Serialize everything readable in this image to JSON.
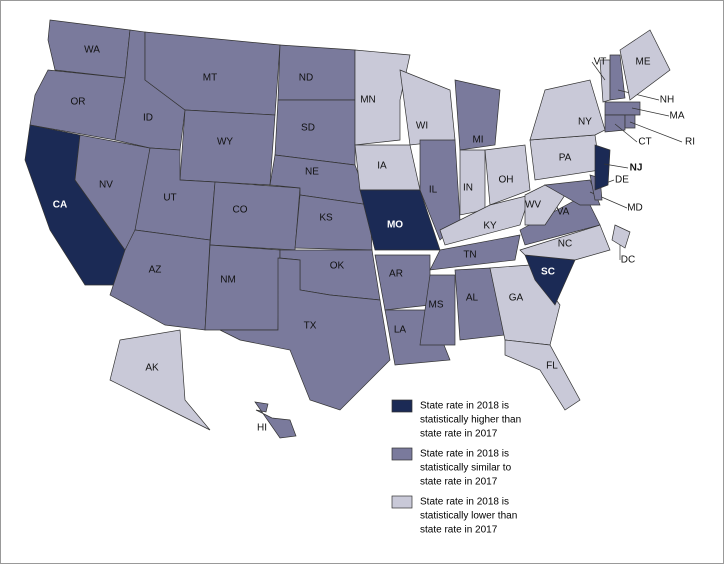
{
  "groups": [
    {
      "id": "higher",
      "color": "#1b2a55",
      "lines": [
        "State rate in 2018 is",
        "statistically higher than",
        "state rate in 2017"
      ]
    },
    {
      "id": "similar",
      "color": "#7a7a9c",
      "lines": [
        "State rate in 2018 is",
        "statistically similar to",
        "state rate in 2017"
      ]
    },
    {
      "id": "lower",
      "color": "#c9c9d8",
      "lines": [
        "State rate in 2018 is",
        "statistically lower than",
        "state rate in 2017"
      ]
    }
  ],
  "states": [
    {
      "abbr": "WA",
      "group": 1
    },
    {
      "abbr": "OR",
      "group": 1
    },
    {
      "abbr": "CA",
      "group": 0
    },
    {
      "abbr": "NV",
      "group": 1
    },
    {
      "abbr": "ID",
      "group": 1
    },
    {
      "abbr": "MT",
      "group": 1
    },
    {
      "abbr": "WY",
      "group": 1
    },
    {
      "abbr": "UT",
      "group": 1
    },
    {
      "abbr": "CO",
      "group": 1
    },
    {
      "abbr": "AZ",
      "group": 1
    },
    {
      "abbr": "NM",
      "group": 1
    },
    {
      "abbr": "ND",
      "group": 1
    },
    {
      "abbr": "SD",
      "group": 1
    },
    {
      "abbr": "NE",
      "group": 1
    },
    {
      "abbr": "KS",
      "group": 1
    },
    {
      "abbr": "OK",
      "group": 1
    },
    {
      "abbr": "TX",
      "group": 1
    },
    {
      "abbr": "MN",
      "group": 2
    },
    {
      "abbr": "IA",
      "group": 2
    },
    {
      "abbr": "MO",
      "group": 0
    },
    {
      "abbr": "AR",
      "group": 1
    },
    {
      "abbr": "LA",
      "group": 1
    },
    {
      "abbr": "WI",
      "group": 2
    },
    {
      "abbr": "IL",
      "group": 1
    },
    {
      "abbr": "MI",
      "group": 1
    },
    {
      "abbr": "IN",
      "group": 2
    },
    {
      "abbr": "OH",
      "group": 2
    },
    {
      "abbr": "KY",
      "group": 2
    },
    {
      "abbr": "TN",
      "group": 1
    },
    {
      "abbr": "MS",
      "group": 1
    },
    {
      "abbr": "AL",
      "group": 1
    },
    {
      "abbr": "GA",
      "group": 2
    },
    {
      "abbr": "FL",
      "group": 2
    },
    {
      "abbr": "SC",
      "group": 0
    },
    {
      "abbr": "NC",
      "group": 2
    },
    {
      "abbr": "VA",
      "group": 1
    },
    {
      "abbr": "WV",
      "group": 2
    },
    {
      "abbr": "PA",
      "group": 2
    },
    {
      "abbr": "NY",
      "group": 2
    },
    {
      "abbr": "MD",
      "group": 1
    },
    {
      "abbr": "DE",
      "group": 1
    },
    {
      "abbr": "NJ",
      "group": 0
    },
    {
      "abbr": "VT",
      "group": 2
    },
    {
      "abbr": "NH",
      "group": 1
    },
    {
      "abbr": "ME",
      "group": 2
    },
    {
      "abbr": "MA",
      "group": 1
    },
    {
      "abbr": "CT",
      "group": 1
    },
    {
      "abbr": "RI",
      "group": 1
    },
    {
      "abbr": "DC",
      "group": 2
    },
    {
      "abbr": "AK",
      "group": 2
    },
    {
      "abbr": "HI",
      "group": 1
    }
  ]
}
